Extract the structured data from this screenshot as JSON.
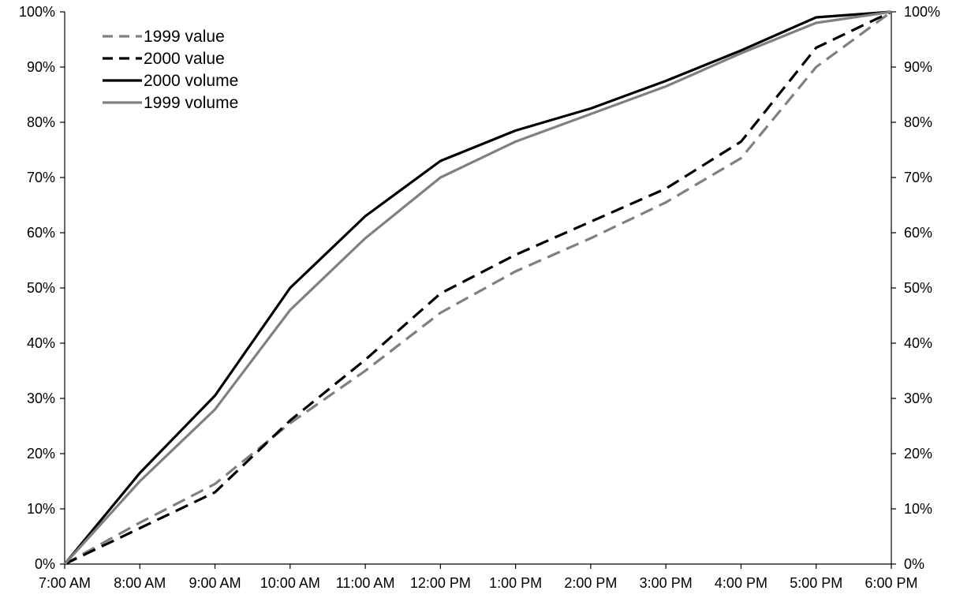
{
  "chart_data": {
    "type": "line",
    "categories": [
      "7:00 AM",
      "8:00 AM",
      "9:00 AM",
      "10:00 AM",
      "11:00 AM",
      "12:00 PM",
      "1:00 PM",
      "2:00 PM",
      "3:00 PM",
      "4:00 PM",
      "5:00 PM",
      "6:00 PM"
    ],
    "y_ticks": [
      "0%",
      "10%",
      "20%",
      "30%",
      "40%",
      "50%",
      "60%",
      "70%",
      "80%",
      "90%",
      "100%"
    ],
    "y_ticks_right": [
      "0%",
      "10%",
      "20%",
      "30%",
      "40%",
      "50%",
      "60%",
      "70%",
      "80%",
      "90%",
      "100%"
    ],
    "ylim": [
      0,
      100
    ],
    "y_unit": "%",
    "grid": false,
    "legend_position": "top-left",
    "series": [
      {
        "name": "1999 value",
        "style": "dashed",
        "color": "#808080",
        "values": [
          0,
          7.5,
          14.5,
          25.5,
          35,
          45.5,
          53,
          59,
          65.5,
          73.5,
          90,
          100
        ]
      },
      {
        "name": "2000 value",
        "style": "dashed",
        "color": "#000000",
        "values": [
          0,
          6.5,
          13,
          26,
          37,
          49,
          56,
          62,
          68,
          76.5,
          93.5,
          100
        ]
      },
      {
        "name": "2000 volume",
        "style": "solid",
        "color": "#000000",
        "values": [
          0,
          16.5,
          30.5,
          50,
          63,
          73,
          78.5,
          82.5,
          87.5,
          93,
          99,
          100
        ]
      },
      {
        "name": "1999 volume",
        "style": "solid",
        "color": "#808080",
        "values": [
          0,
          15,
          28,
          46,
          59,
          70,
          76.5,
          81.5,
          86.5,
          92.5,
          98,
          100
        ]
      }
    ]
  }
}
